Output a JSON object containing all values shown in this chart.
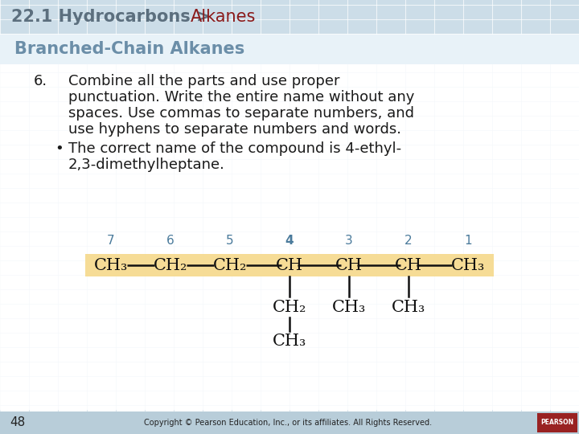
{
  "header_gray": "22.1 Hydrocarbons > ",
  "header_red": "Alkanes",
  "section_title": "Branched-Chain Alkanes",
  "item_number": "6.",
  "item_text_lines": [
    "Combine all the parts and use proper",
    "punctuation. Write the entire name without any",
    "spaces. Use commas to separate numbers, and",
    "use hyphens to separate numbers and words."
  ],
  "bullet_text_lines": [
    "The correct name of the compound is 4-ethyl-",
    "2,3-dimethylheptane."
  ],
  "background_color": "#ffffff",
  "header_bg_color": "#ccdde8",
  "tile_color_dark": "#b8d0df",
  "tile_color_light": "#deedf7",
  "section_title_color": "#6b8ea8",
  "header_gray_color": "#5c6f7e",
  "header_red_color": "#8b1a1a",
  "body_text_color": "#1a1a1a",
  "page_number": "48",
  "copyright_text": "Copyright © Pearson Education, Inc., or its affiliates. All Rights Reserved.",
  "highlight_color": "#f5d98b",
  "number_color": "#4a7a9b",
  "bond_color": "#111111",
  "footer_bg": "#b8cdd9",
  "pearson_bg": "#992222"
}
